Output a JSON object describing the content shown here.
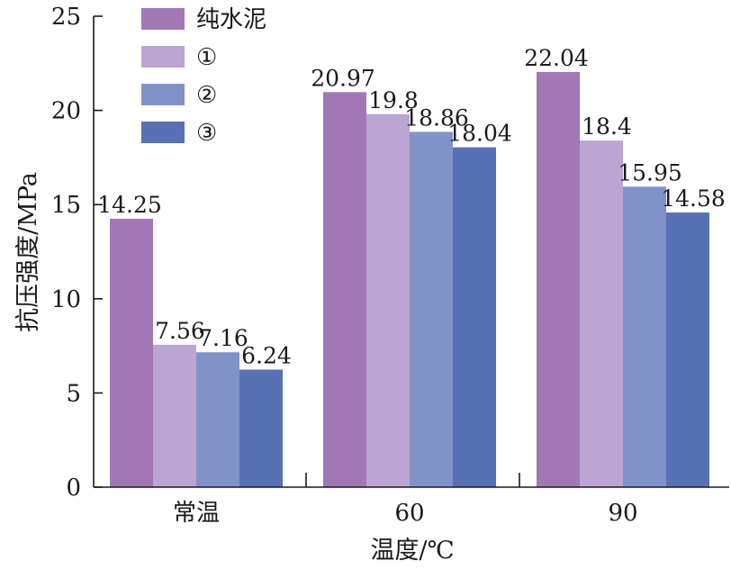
{
  "chart_data": {
    "type": "bar",
    "title": "",
    "xlabel": "温度/℃",
    "ylabel": "抗压强度/MPa",
    "categories": [
      "常温",
      "60",
      "90"
    ],
    "ylim": [
      0,
      25
    ],
    "yticks": [
      0,
      5,
      10,
      15,
      20,
      25
    ],
    "grid": false,
    "legend_position": "top-left",
    "series": [
      {
        "name": "纯水泥",
        "color": "#a277b5",
        "values": [
          14.25,
          20.97,
          22.04
        ],
        "labels": [
          "14.25",
          "20.97",
          "22.04"
        ]
      },
      {
        "name": "①",
        "color": "#bba5d2",
        "values": [
          7.56,
          19.8,
          18.4
        ],
        "labels": [
          "7.56",
          "19.8",
          "18.4"
        ]
      },
      {
        "name": "②",
        "color": "#8192c8",
        "values": [
          7.16,
          18.86,
          15.95
        ],
        "labels": [
          "7.16",
          "18.86",
          "15.95"
        ]
      },
      {
        "name": "③",
        "color": "#5870b4",
        "values": [
          6.24,
          18.04,
          14.58
        ],
        "labels": [
          "6.24",
          "18.04",
          "14.58"
        ]
      }
    ]
  }
}
